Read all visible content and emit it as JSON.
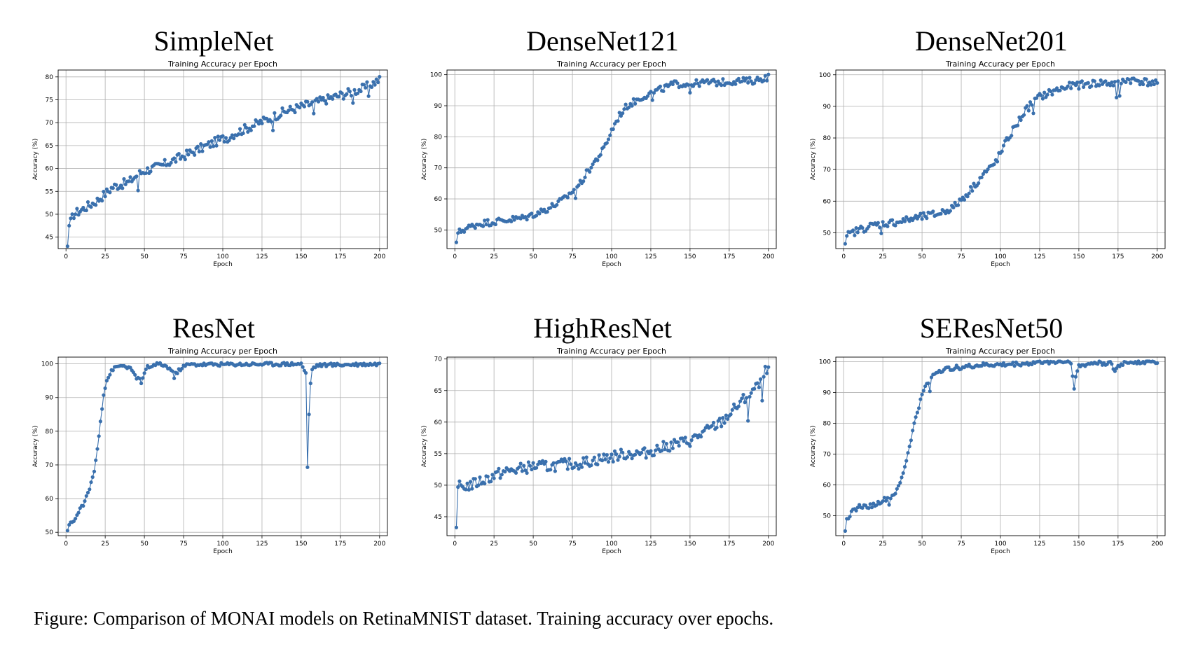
{
  "caption": "Figure: Comparison of MONAI models on RetinaMNIST dataset. Training accuracy over epochs.",
  "colors": {
    "series": "#3a70ad",
    "grid": "#b0b0b0",
    "axes": "#000000"
  },
  "chart_data": [
    {
      "model": "SimpleNet",
      "type": "line",
      "title": "Training Accuracy per Epoch",
      "xlabel": "Epoch",
      "ylabel": "Accuracy (%)",
      "xlim": [
        -5,
        205
      ],
      "ylim": [
        42.5,
        81.5
      ],
      "xticks": [
        0,
        25,
        50,
        75,
        100,
        125,
        150,
        175,
        200
      ],
      "yticks": [
        45,
        50,
        55,
        60,
        65,
        70,
        75,
        80
      ],
      "grid": true,
      "keypoints": [
        [
          1,
          43
        ],
        [
          2,
          47.5
        ],
        [
          5,
          50
        ],
        [
          10,
          51
        ],
        [
          20,
          53
        ],
        [
          30,
          56
        ],
        [
          40,
          57
        ],
        [
          45,
          58.5
        ],
        [
          50,
          59.5
        ],
        [
          60,
          60.5
        ],
        [
          70,
          62
        ],
        [
          80,
          63.5
        ],
        [
          90,
          65
        ],
        [
          100,
          66.5
        ],
        [
          110,
          68
        ],
        [
          120,
          69.5
        ],
        [
          130,
          71
        ],
        [
          140,
          72.5
        ],
        [
          150,
          73.5
        ],
        [
          160,
          74.5
        ],
        [
          170,
          75.5
        ],
        [
          180,
          76.5
        ],
        [
          190,
          77.5
        ],
        [
          195,
          78.5
        ],
        [
          200,
          79.5
        ]
      ],
      "noise": 1.0,
      "dips": [
        [
          46,
          55.2
        ],
        [
          103,
          65.8
        ],
        [
          132,
          68.3
        ],
        [
          158,
          72
        ],
        [
          183,
          74.3
        ],
        [
          193,
          75.8
        ]
      ]
    },
    {
      "model": "DenseNet121",
      "type": "line",
      "title": "Training Accuracy per Epoch",
      "xlabel": "Epoch",
      "ylabel": "Accuracy (%)",
      "xlim": [
        -5,
        205
      ],
      "ylim": [
        44,
        101.5
      ],
      "xticks": [
        0,
        25,
        50,
        75,
        100,
        125,
        150,
        175,
        200
      ],
      "yticks": [
        50,
        60,
        70,
        80,
        90,
        100
      ],
      "grid": true,
      "keypoints": [
        [
          1,
          46
        ],
        [
          2,
          49
        ],
        [
          5,
          50
        ],
        [
          15,
          52
        ],
        [
          30,
          53
        ],
        [
          45,
          54
        ],
        [
          60,
          57
        ],
        [
          70,
          60
        ],
        [
          80,
          65
        ],
        [
          85,
          69
        ],
        [
          90,
          72.5
        ],
        [
          95,
          76
        ],
        [
          100,
          82
        ],
        [
          105,
          87
        ],
        [
          110,
          90
        ],
        [
          120,
          93
        ],
        [
          130,
          95
        ],
        [
          140,
          97
        ],
        [
          150,
          97
        ],
        [
          160,
          97.5
        ],
        [
          170,
          97.5
        ],
        [
          180,
          98
        ],
        [
          190,
          98
        ],
        [
          200,
          99.3
        ]
      ],
      "noise": 1.1,
      "dips": [
        [
          77,
          60.2
        ],
        [
          126,
          91.8
        ],
        [
          150,
          94.2
        ]
      ]
    },
    {
      "model": "DenseNet201",
      "type": "line",
      "title": "Training Accuracy per Epoch",
      "xlabel": "Epoch",
      "ylabel": "Accuracy (%)",
      "xlim": [
        -5,
        205
      ],
      "ylim": [
        45,
        101.5
      ],
      "xticks": [
        0,
        25,
        50,
        75,
        100,
        125,
        150,
        175,
        200
      ],
      "yticks": [
        50,
        60,
        70,
        80,
        90,
        100
      ],
      "grid": true,
      "keypoints": [
        [
          1,
          46.5
        ],
        [
          2,
          49
        ],
        [
          10,
          51
        ],
        [
          20,
          52.5
        ],
        [
          35,
          53.5
        ],
        [
          50,
          55
        ],
        [
          60,
          56
        ],
        [
          70,
          58
        ],
        [
          80,
          63
        ],
        [
          85,
          66
        ],
        [
          90,
          69
        ],
        [
          95,
          71
        ],
        [
          100,
          75
        ],
        [
          105,
          80
        ],
        [
          110,
          84
        ],
        [
          115,
          88
        ],
        [
          120,
          91
        ],
        [
          125,
          93
        ],
        [
          135,
          95
        ],
        [
          145,
          96.5
        ],
        [
          155,
          97
        ],
        [
          165,
          97.5
        ],
        [
          175,
          97
        ],
        [
          180,
          98.5
        ],
        [
          190,
          98
        ],
        [
          200,
          97
        ]
      ],
      "noise": 1.2,
      "dips": [
        [
          24,
          49.8
        ],
        [
          121,
          87.8
        ],
        [
          174,
          92.8
        ],
        [
          176,
          93.3
        ]
      ]
    },
    {
      "model": "ResNet",
      "type": "line",
      "title": "Training Accuracy per Epoch",
      "xlabel": "Epoch",
      "ylabel": "Accuracy (%)",
      "xlim": [
        -5,
        205
      ],
      "ylim": [
        49,
        102
      ],
      "xticks": [
        0,
        25,
        50,
        75,
        100,
        125,
        150,
        175,
        200
      ],
      "yticks": [
        50,
        60,
        70,
        80,
        90,
        100
      ],
      "grid": true,
      "keypoints": [
        [
          1,
          50.5
        ],
        [
          3,
          53
        ],
        [
          6,
          54
        ],
        [
          9,
          57
        ],
        [
          12,
          59
        ],
        [
          15,
          63
        ],
        [
          18,
          68
        ],
        [
          20,
          75
        ],
        [
          22,
          83
        ],
        [
          24,
          91
        ],
        [
          26,
          95
        ],
        [
          28,
          97
        ],
        [
          30,
          98.5
        ],
        [
          35,
          99.5
        ],
        [
          40,
          99
        ],
        [
          45,
          96
        ],
        [
          48,
          95
        ],
        [
          52,
          99
        ],
        [
          60,
          100
        ],
        [
          65,
          99
        ],
        [
          70,
          97
        ],
        [
          74,
          99
        ],
        [
          78,
          99.8
        ],
        [
          150,
          100
        ],
        [
          152,
          98
        ],
        [
          153,
          92
        ],
        [
          154,
          69.3
        ],
        [
          155,
          85
        ],
        [
          156,
          94
        ],
        [
          157,
          98.5
        ],
        [
          160,
          99.6
        ],
        [
          200,
          100
        ]
      ],
      "noise": 0.5,
      "dips": [
        [
          48,
          94.2
        ],
        [
          69,
          95.7
        ],
        [
          153,
          97.3
        ],
        [
          154,
          69.3
        ],
        [
          155,
          85
        ],
        [
          156,
          94.2
        ]
      ]
    },
    {
      "model": "HighResNet",
      "type": "line",
      "title": "Training Accuracy per Epoch",
      "xlabel": "Epoch",
      "ylabel": "Accuracy (%)",
      "xlim": [
        -5,
        205
      ],
      "ylim": [
        42,
        70.3
      ],
      "xticks": [
        0,
        25,
        50,
        75,
        100,
        125,
        150,
        175,
        200
      ],
      "yticks": [
        45,
        50,
        55,
        60,
        65,
        70
      ],
      "grid": true,
      "keypoints": [
        [
          1,
          43.3
        ],
        [
          2,
          49.7
        ],
        [
          10,
          50
        ],
        [
          20,
          51
        ],
        [
          30,
          52
        ],
        [
          40,
          52.5
        ],
        [
          50,
          53
        ],
        [
          60,
          53
        ],
        [
          70,
          53.3
        ],
        [
          80,
          53.5
        ],
        [
          90,
          54
        ],
        [
          100,
          54.5
        ],
        [
          110,
          55
        ],
        [
          120,
          55
        ],
        [
          130,
          55.8
        ],
        [
          140,
          56.5
        ],
        [
          150,
          57
        ],
        [
          160,
          58.5
        ],
        [
          170,
          60
        ],
        [
          180,
          62.5
        ],
        [
          190,
          65
        ],
        [
          195,
          66
        ],
        [
          200,
          69.2
        ]
      ],
      "noise": 0.9,
      "dips": [
        [
          187,
          60.2
        ],
        [
          196,
          63.4
        ]
      ]
    },
    {
      "model": "SEResNet50",
      "type": "line",
      "title": "Training Accuracy per Epoch",
      "xlabel": "Epoch",
      "ylabel": "Accuracy (%)",
      "xlim": [
        -5,
        205
      ],
      "ylim": [
        43.5,
        101.5
      ],
      "xticks": [
        0,
        25,
        50,
        75,
        100,
        125,
        150,
        175,
        200
      ],
      "yticks": [
        50,
        60,
        70,
        80,
        90,
        100
      ],
      "grid": true,
      "keypoints": [
        [
          1,
          45
        ],
        [
          2,
          49
        ],
        [
          5,
          51
        ],
        [
          10,
          53
        ],
        [
          15,
          53
        ],
        [
          20,
          53.5
        ],
        [
          25,
          55
        ],
        [
          30,
          56
        ],
        [
          34,
          58
        ],
        [
          37,
          62
        ],
        [
          40,
          68
        ],
        [
          43,
          75
        ],
        [
          46,
          82
        ],
        [
          50,
          89
        ],
        [
          53,
          93
        ],
        [
          56,
          95
        ],
        [
          60,
          97
        ],
        [
          70,
          98
        ],
        [
          80,
          98.5
        ],
        [
          90,
          99
        ],
        [
          100,
          99
        ],
        [
          110,
          99.3
        ],
        [
          120,
          99.5
        ],
        [
          125,
          100
        ],
        [
          145,
          100
        ],
        [
          146,
          96
        ],
        [
          147,
          91.2
        ],
        [
          148,
          95
        ],
        [
          150,
          98.5
        ],
        [
          160,
          99.7
        ],
        [
          170,
          99.5
        ],
        [
          173,
          97
        ],
        [
          175,
          98.5
        ],
        [
          180,
          100
        ],
        [
          200,
          100
        ]
      ],
      "noise": 0.7,
      "dips": [
        [
          147,
          91.2
        ],
        [
          29,
          53.5
        ],
        [
          55,
          90.4
        ]
      ]
    }
  ]
}
